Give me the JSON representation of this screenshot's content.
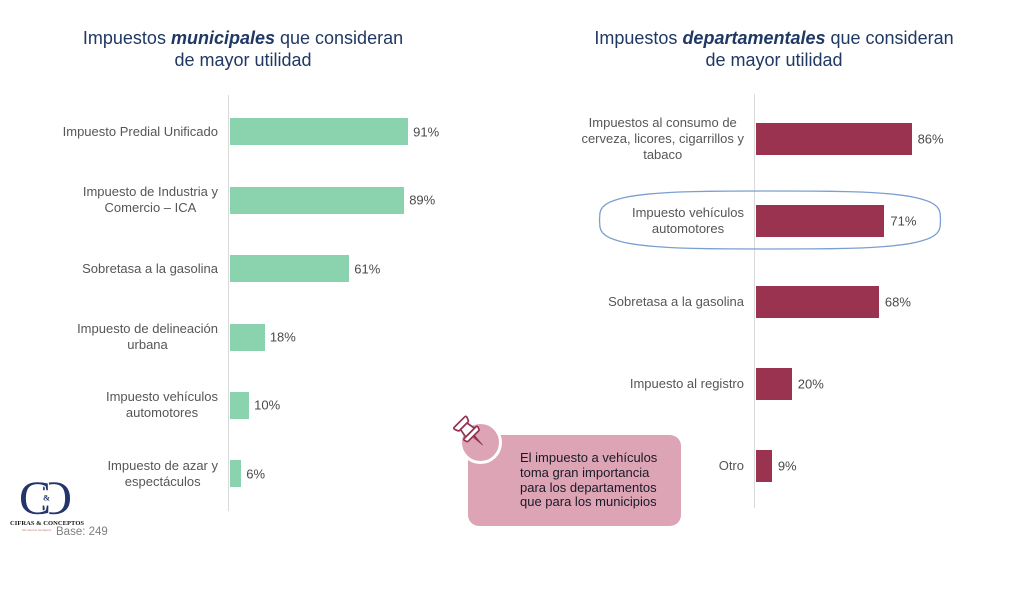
{
  "slide": {
    "background": "#ffffff"
  },
  "chart_data": [
    {
      "type": "bar",
      "orientation": "horizontal",
      "title": {
        "prefix": "Impuestos ",
        "emphasis": "municipales",
        "suffix": " que consideran",
        "line2": "de mayor utilidad"
      },
      "categories": [
        "Impuesto Predial Unificado",
        "Impuesto de Industria y Comercio – ICA",
        "Sobretasa a la gasolina",
        "Impuesto de delineación urbana",
        "Impuesto vehículos automotores",
        "Impuesto de azar y espectáculos"
      ],
      "label_lines": [
        [
          "Impuesto Predial Unificado"
        ],
        [
          "Impuesto de Industria y",
          "Comercio – ICA"
        ],
        [
          "Sobretasa a la gasolina"
        ],
        [
          "Impuesto de delineación",
          "urbana"
        ],
        [
          "Impuesto vehículos",
          "automotores"
        ],
        [
          "Impuesto de azar y",
          "espectáculos"
        ]
      ],
      "values": [
        91,
        89,
        61,
        18,
        10,
        6
      ],
      "value_labels": [
        "91%",
        "89%",
        "61%",
        "18%",
        "10%",
        "6%"
      ],
      "bar_color": "#8BD3AE",
      "xlim": [
        0,
        100
      ],
      "grid": false,
      "legend": "none"
    },
    {
      "type": "bar",
      "orientation": "horizontal",
      "title": {
        "prefix": "Impuestos ",
        "emphasis": "departamentales",
        "suffix": " que consideran",
        "line2": "de mayor utilidad"
      },
      "categories": [
        "Impuestos al consumo de cerveza, licores, cigarrillos y tabaco",
        "Impuesto vehículos automotores",
        "Sobretasa a la gasolina",
        "Impuesto al registro",
        "Otro"
      ],
      "label_lines": [
        [
          "Impuestos al consumo de",
          "cerveza, licores, cigarrillos y",
          "tabaco"
        ],
        [
          "Impuesto vehículos",
          "automotores"
        ],
        [
          "Sobretasa a la gasolina"
        ],
        [
          "Impuesto al registro"
        ],
        [
          "Otro"
        ]
      ],
      "values": [
        86,
        71,
        68,
        20,
        9
      ],
      "value_labels": [
        "86%",
        "71%",
        "68%",
        "20%",
        "9%"
      ],
      "bar_color": "#9A334F",
      "xlim": [
        0,
        100
      ],
      "grid": false,
      "legend": "none",
      "highlight": {
        "category": "Impuesto vehículos automotores",
        "shape": "ellipse",
        "stroke_color": "#7C9FD1"
      }
    }
  ],
  "callout": {
    "lines": [
      "El impuesto a vehículos",
      "toma gran importancia",
      "para los departamentos",
      "que para los municipios"
    ],
    "background": "#DDA4B6",
    "text_color": "#1A1A24",
    "pin_color": "#943352"
  },
  "footer": {
    "base_note": "Base: 249",
    "logo_monogram": "C",
    "logo_ampersand": "&",
    "logo_name": "CIFRAS & CONCEPTOS",
    "logo_tagline": "información inteligente",
    "logo_color": "#24356B"
  },
  "colors": {
    "title_navy": "#1F3864",
    "label_gray": "#565656",
    "axis_gray": "#D9D9D9",
    "green": "#8BD3AE",
    "maroon": "#9A334F",
    "pink": "#DDA4B6",
    "ellipse_blue": "#7C9FD1"
  }
}
